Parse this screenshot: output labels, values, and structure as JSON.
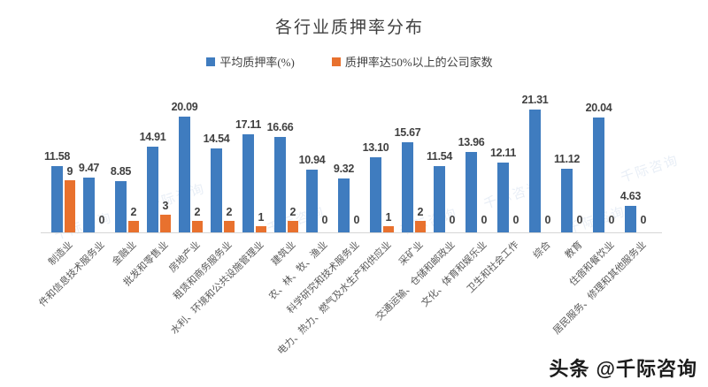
{
  "watermark": {
    "bottom_right": "头条 @千际咨询",
    "tile_text": "千际咨询"
  },
  "chart_data": {
    "type": "bar",
    "title": "各行业质押率分布",
    "categories": [
      "制造业",
      "件和信息技术服务业",
      "金融业",
      "批发和零售业",
      "房地产业",
      "租赁和商务服务业",
      "水利、环境和公共设施管理业",
      "建筑业",
      "农、林、牧、渔业",
      "科学研究和技术服务业",
      "电力、热力、燃气及水生产和供应业",
      "采矿业",
      "交通运输、仓储和邮政业",
      "文化、体育和娱乐业",
      "卫生和社会工作",
      "综合",
      "教育",
      "住宿和餐饮业",
      "居民服务、修理和其他服务业"
    ],
    "series": [
      {
        "name": "平均质押率(%)",
        "color": "#3f7cbf",
        "values": [
          11.58,
          9.47,
          8.85,
          14.91,
          20.09,
          14.54,
          17.11,
          16.66,
          10.94,
          9.32,
          13.1,
          15.67,
          11.54,
          13.96,
          12.11,
          21.31,
          11.12,
          20.04,
          4.63
        ],
        "value_labels": [
          "11.58",
          "9.47",
          "8.85",
          "14.91",
          "20.09",
          "14.54",
          "17.11",
          "16.66",
          "10.94",
          "9.32",
          "13.10",
          "15.67",
          "11.54",
          "13.96",
          "12.11",
          "21.31",
          "11.12",
          "20.04",
          "4.63"
        ]
      },
      {
        "name": "质押率达50%以上的公司家数",
        "color": "#e8712e",
        "values": [
          9,
          0,
          2,
          3,
          2,
          2,
          1,
          2,
          0,
          0,
          1,
          2,
          0,
          0,
          0,
          0,
          0,
          0,
          0
        ],
        "value_labels": [
          "9",
          "0",
          "2",
          "3",
          "2",
          "2",
          "1",
          "2",
          "0",
          "0",
          "1",
          "2",
          "0",
          "0",
          "0",
          "0",
          "0",
          "0",
          "0"
        ]
      }
    ],
    "ylim": [
      0,
      22
    ],
    "grid": false,
    "legend_position": "top",
    "x_label_rotation_deg": 45
  }
}
